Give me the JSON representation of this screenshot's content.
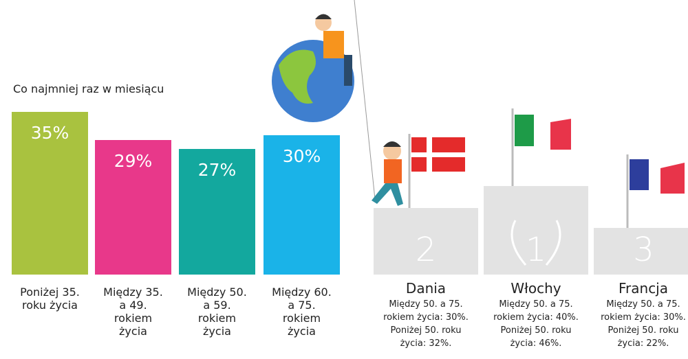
{
  "chart_data": {
    "type": "bar",
    "subtitle": "Co najmniej raz w miesiącu",
    "categories": [
      "Poniżej 35. roku życia",
      "Między 35. a 49. rokiem życia",
      "Między 50. a 59. rokiem życia",
      "Między 60. a 75. rokiem życia"
    ],
    "values": [
      35,
      29,
      27,
      30
    ],
    "value_labels": [
      "35%",
      "29%",
      "27%",
      "30%"
    ],
    "colors": [
      "#a9c23f",
      "#e8388a",
      "#13a89e",
      "#1ab3e8"
    ]
  },
  "podium": [
    {
      "rank": "2",
      "country": "Dania",
      "text": "Między 50. a 75. rokiem życia: 30%. Poniżej 50. roku życia: 32%."
    },
    {
      "rank": "1",
      "country": "Włochy",
      "text": "Między 50. a 75. rokiem życia: 40%. Poniżej 50. roku życia: 46%."
    },
    {
      "rank": "3",
      "country": "Francja",
      "text": "Między 50. a 75. rokiem życia: 30%. Poniżej 50. roku życia: 22%."
    }
  ]
}
